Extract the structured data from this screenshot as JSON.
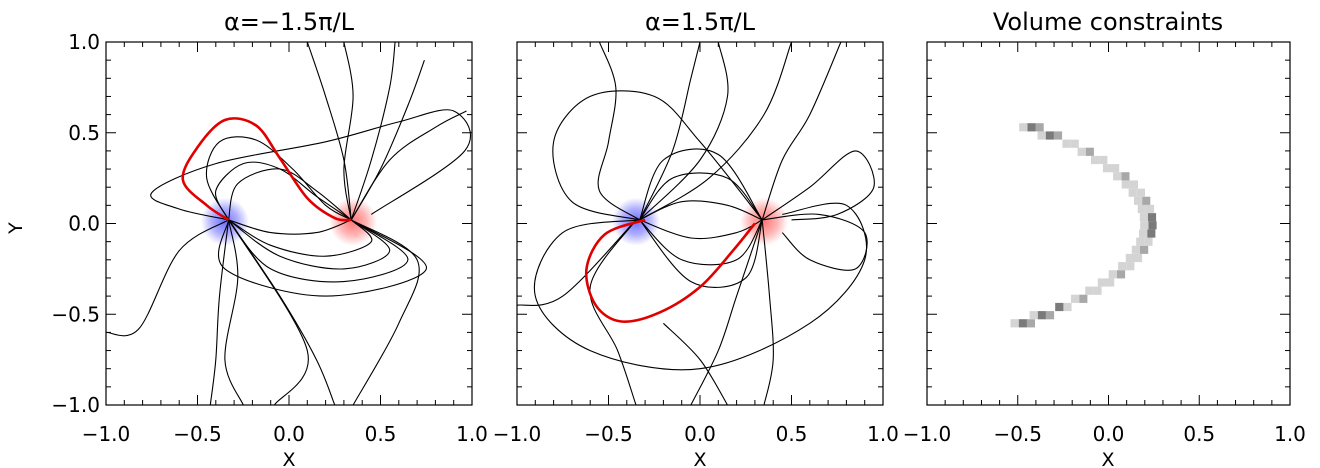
{
  "chart_data": [
    {
      "type": "line",
      "title": "α=−1.5π/L",
      "xlabel": "X",
      "ylabel": "Y",
      "xlim": [
        -1.0,
        1.0
      ],
      "ylim": [
        -1.0,
        1.0
      ],
      "x_ticks": [
        "−1.0",
        "−0.5",
        "0.0",
        "0.5",
        "1.0"
      ],
      "y_ticks": [
        "−1.0",
        "−0.5",
        "0.0",
        "0.5",
        "1.0"
      ],
      "grid": false,
      "sources": [
        {
          "name": "negative-pole",
          "x": -0.35,
          "y": 0.01,
          "color": "#6f6fff"
        },
        {
          "name": "positive-pole",
          "x": 0.35,
          "y": 0.01,
          "color": "#ff7777"
        }
      ],
      "highlight_color": "#e00000",
      "field_lines": [
        {
          "highlight": true,
          "points": [
            [
              -0.33,
              0.02
            ],
            [
              -0.45,
              0.1
            ],
            [
              -0.58,
              0.24
            ],
            [
              -0.5,
              0.42
            ],
            [
              -0.35,
              0.57
            ],
            [
              -0.18,
              0.54
            ],
            [
              -0.05,
              0.36
            ],
            [
              0.1,
              0.14
            ],
            [
              0.25,
              0.03
            ],
            [
              0.34,
              0.02
            ]
          ]
        },
        {
          "highlight": false,
          "points": [
            [
              -0.33,
              0.02
            ],
            [
              -0.28,
              0.22
            ],
            [
              -0.05,
              0.3
            ],
            [
              0.15,
              0.18
            ],
            [
              0.34,
              0.02
            ]
          ]
        },
        {
          "highlight": false,
          "points": [
            [
              -0.33,
              0.02
            ],
            [
              -0.45,
              0.25
            ],
            [
              -0.38,
              0.45
            ],
            [
              -0.18,
              0.46
            ],
            [
              0.02,
              0.3
            ],
            [
              0.2,
              0.1
            ],
            [
              0.34,
              0.02
            ]
          ]
        },
        {
          "highlight": false,
          "points": [
            [
              -0.33,
              0.02
            ],
            [
              -0.4,
              0.18
            ],
            [
              -0.25,
              0.33
            ],
            [
              -0.05,
              0.3
            ],
            [
              0.15,
              0.15
            ],
            [
              0.34,
              0.02
            ]
          ]
        },
        {
          "highlight": false,
          "points": [
            [
              -0.33,
              0.02
            ],
            [
              -0.1,
              -0.05
            ],
            [
              0.15,
              -0.05
            ],
            [
              0.34,
              0.02
            ]
          ]
        },
        {
          "highlight": false,
          "points": [
            [
              -0.33,
              0.02
            ],
            [
              -0.1,
              -0.12
            ],
            [
              0.2,
              -0.18
            ],
            [
              0.45,
              -0.1
            ],
            [
              0.34,
              0.02
            ]
          ]
        },
        {
          "highlight": false,
          "points": [
            [
              -0.33,
              0.02
            ],
            [
              -0.05,
              -0.18
            ],
            [
              0.3,
              -0.25
            ],
            [
              0.55,
              -0.15
            ],
            [
              0.34,
              0.02
            ]
          ]
        },
        {
          "highlight": false,
          "points": [
            [
              -0.33,
              0.02
            ],
            [
              -0.1,
              -0.25
            ],
            [
              0.3,
              -0.32
            ],
            [
              0.65,
              -0.2
            ],
            [
              0.34,
              0.02
            ]
          ]
        },
        {
          "highlight": false,
          "points": [
            [
              -0.33,
              0.02
            ],
            [
              -0.35,
              -0.25
            ],
            [
              0.2,
              -0.4
            ],
            [
              0.75,
              -0.25
            ],
            [
              0.34,
              0.02
            ]
          ]
        },
        {
          "highlight": false,
          "points": [
            [
              -0.33,
              0.02
            ],
            [
              -0.6,
              0.08
            ],
            [
              -0.75,
              0.17
            ],
            [
              -0.4,
              0.33
            ],
            [
              0.2,
              0.45
            ],
            [
              0.6,
              0.56
            ],
            [
              0.9,
              0.62
            ],
            [
              0.96,
              0.4
            ],
            [
              0.45,
              0.05
            ]
          ]
        },
        {
          "highlight": false,
          "points": [
            [
              -0.33,
              0.02
            ],
            [
              -0.6,
              -0.15
            ],
            [
              -0.82,
              -0.58
            ],
            [
              -1.0,
              -0.6
            ]
          ]
        },
        {
          "highlight": false,
          "points": [
            [
              -0.33,
              0.02
            ],
            [
              -0.38,
              -0.4
            ],
            [
              -0.4,
              -0.75
            ],
            [
              -0.43,
              -1.0
            ]
          ]
        },
        {
          "highlight": false,
          "points": [
            [
              -0.33,
              0.02
            ],
            [
              -0.28,
              -0.3
            ],
            [
              -0.35,
              -0.75
            ],
            [
              -0.25,
              -1.0
            ]
          ]
        },
        {
          "highlight": false,
          "points": [
            [
              -0.33,
              0.02
            ],
            [
              -0.05,
              -0.4
            ],
            [
              0.15,
              -0.75
            ],
            [
              0.25,
              -1.0
            ]
          ]
        },
        {
          "highlight": false,
          "points": [
            [
              -0.33,
              0.02
            ],
            [
              0.1,
              -0.7
            ],
            [
              -0.08,
              -1.0
            ]
          ]
        },
        {
          "highlight": false,
          "points": [
            [
              0.1,
              1.0
            ],
            [
              0.2,
              0.7
            ],
            [
              0.3,
              0.35
            ],
            [
              0.34,
              0.02
            ]
          ]
        },
        {
          "highlight": false,
          "points": [
            [
              0.3,
              1.0
            ],
            [
              0.35,
              0.7
            ],
            [
              0.3,
              0.3
            ],
            [
              0.34,
              0.02
            ]
          ]
        },
        {
          "highlight": false,
          "points": [
            [
              0.34,
              0.02
            ],
            [
              0.55,
              0.35
            ],
            [
              0.8,
              0.53
            ],
            [
              0.97,
              0.62
            ]
          ]
        },
        {
          "highlight": false,
          "points": [
            [
              0.34,
              0.02
            ],
            [
              0.5,
              0.3
            ],
            [
              0.65,
              0.65
            ],
            [
              0.74,
              0.9
            ]
          ]
        },
        {
          "highlight": false,
          "points": [
            [
              0.34,
              0.02
            ],
            [
              0.45,
              0.35
            ],
            [
              0.55,
              0.75
            ],
            [
              0.58,
              1.0
            ]
          ]
        },
        {
          "highlight": false,
          "points": [
            [
              0.34,
              0.02
            ],
            [
              0.7,
              -0.2
            ],
            [
              0.6,
              -0.55
            ],
            [
              0.35,
              -1.0
            ]
          ]
        }
      ]
    },
    {
      "type": "line",
      "title": "α=1.5π/L",
      "xlabel": "X",
      "ylabel": "",
      "xlim": [
        -1.0,
        1.0
      ],
      "ylim": [
        -1.0,
        1.0
      ],
      "x_ticks": [
        "−1.0",
        "−0.5",
        "0.0",
        "0.5",
        "1.0"
      ],
      "grid": false,
      "sources": [
        {
          "name": "negative-pole",
          "x": -0.35,
          "y": 0.01,
          "color": "#6f6fff"
        },
        {
          "name": "positive-pole",
          "x": 0.35,
          "y": 0.01,
          "color": "#ff7777"
        }
      ],
      "highlight_color": "#e00000",
      "field_lines": [
        {
          "highlight": true,
          "points": [
            [
              -0.3,
              0.02
            ],
            [
              -0.52,
              -0.06
            ],
            [
              -0.62,
              -0.25
            ],
            [
              -0.57,
              -0.45
            ],
            [
              -0.43,
              -0.54
            ],
            [
              -0.22,
              -0.49
            ],
            [
              0.0,
              -0.35
            ],
            [
              0.18,
              -0.15
            ],
            [
              0.3,
              0.0
            ]
          ]
        },
        {
          "highlight": false,
          "points": [
            [
              -0.33,
              0.02
            ],
            [
              -0.1,
              0.12
            ],
            [
              0.15,
              0.1
            ],
            [
              0.34,
              0.02
            ]
          ]
        },
        {
          "highlight": false,
          "points": [
            [
              -0.33,
              0.02
            ],
            [
              -0.15,
              0.25
            ],
            [
              0.15,
              0.25
            ],
            [
              0.34,
              0.02
            ]
          ]
        },
        {
          "highlight": false,
          "points": [
            [
              -0.33,
              0.02
            ],
            [
              -0.2,
              0.35
            ],
            [
              0.1,
              0.38
            ],
            [
              0.34,
              0.02
            ]
          ]
        },
        {
          "highlight": false,
          "points": [
            [
              -0.33,
              0.02
            ],
            [
              -0.05,
              -0.08
            ],
            [
              0.2,
              -0.05
            ],
            [
              0.34,
              0.02
            ]
          ]
        },
        {
          "highlight": false,
          "points": [
            [
              -0.33,
              0.02
            ],
            [
              -0.1,
              -0.2
            ],
            [
              0.2,
              -0.2
            ],
            [
              0.34,
              0.02
            ]
          ]
        },
        {
          "highlight": false,
          "points": [
            [
              -0.33,
              0.02
            ],
            [
              -0.05,
              -0.32
            ],
            [
              0.25,
              -0.3
            ],
            [
              0.34,
              0.02
            ]
          ]
        },
        {
          "highlight": false,
          "points": [
            [
              -0.33,
              0.02
            ],
            [
              -0.7,
              0.12
            ],
            [
              -0.8,
              0.45
            ],
            [
              -0.6,
              0.7
            ],
            [
              -0.25,
              0.7
            ],
            [
              0.0,
              0.45
            ],
            [
              0.34,
              0.02
            ]
          ]
        },
        {
          "highlight": false,
          "points": [
            [
              -0.33,
              0.02
            ],
            [
              -0.55,
              0.18
            ],
            [
              -0.5,
              0.45
            ],
            [
              -0.46,
              0.75
            ],
            [
              -0.55,
              1.0
            ]
          ]
        },
        {
          "highlight": false,
          "points": [
            [
              -0.33,
              0.02
            ],
            [
              -0.15,
              0.4
            ],
            [
              -0.05,
              0.8
            ],
            [
              0.0,
              1.0
            ]
          ]
        },
        {
          "highlight": false,
          "points": [
            [
              -0.33,
              0.02
            ],
            [
              0.0,
              0.35
            ],
            [
              0.15,
              0.7
            ],
            [
              0.1,
              1.0
            ]
          ]
        },
        {
          "highlight": false,
          "points": [
            [
              -0.33,
              0.02
            ],
            [
              0.05,
              0.25
            ],
            [
              0.35,
              0.6
            ],
            [
              0.5,
              1.0
            ]
          ]
        },
        {
          "highlight": false,
          "points": [
            [
              -0.33,
              0.02
            ],
            [
              -0.75,
              -0.05
            ],
            [
              -0.9,
              -0.4
            ],
            [
              -0.6,
              -0.7
            ],
            [
              0.0,
              -0.8
            ],
            [
              0.6,
              -0.55
            ],
            [
              0.9,
              -0.2
            ],
            [
              0.8,
              0.1
            ],
            [
              0.45,
              0.05
            ]
          ]
        },
        {
          "highlight": false,
          "points": [
            [
              -0.35,
              0.02
            ],
            [
              -0.6,
              -0.35
            ],
            [
              -0.45,
              -0.7
            ],
            [
              -0.35,
              -1.0
            ]
          ]
        },
        {
          "highlight": false,
          "points": [
            [
              -0.35,
              0.02
            ],
            [
              -0.75,
              -0.4
            ],
            [
              -1.0,
              -0.45
            ]
          ]
        },
        {
          "highlight": false,
          "points": [
            [
              -0.2,
              -0.55
            ],
            [
              0.0,
              -0.75
            ],
            [
              0.15,
              -1.0
            ]
          ]
        },
        {
          "highlight": false,
          "points": [
            [
              0.34,
              0.02
            ],
            [
              0.45,
              0.35
            ],
            [
              0.6,
              0.6
            ],
            [
              0.77,
              1.0
            ]
          ]
        },
        {
          "highlight": false,
          "points": [
            [
              0.34,
              0.02
            ],
            [
              0.6,
              0.2
            ],
            [
              0.85,
              0.4
            ],
            [
              0.95,
              0.2
            ],
            [
              0.75,
              0.05
            ],
            [
              0.5,
              0.02
            ]
          ]
        },
        {
          "highlight": false,
          "points": [
            [
              0.34,
              0.02
            ],
            [
              0.65,
              0.05
            ],
            [
              0.9,
              -0.05
            ],
            [
              0.85,
              -0.25
            ],
            [
              0.6,
              -0.2
            ],
            [
              0.45,
              -0.05
            ]
          ]
        },
        {
          "highlight": false,
          "points": [
            [
              0.34,
              0.02
            ],
            [
              0.2,
              -0.4
            ],
            [
              0.1,
              -0.7
            ],
            [
              -0.05,
              -1.0
            ]
          ]
        },
        {
          "highlight": false,
          "points": [
            [
              0.34,
              0.02
            ],
            [
              0.38,
              -0.4
            ],
            [
              0.4,
              -0.75
            ],
            [
              0.35,
              -1.0
            ]
          ]
        }
      ]
    },
    {
      "type": "heatmap",
      "title": "Volume constraints",
      "xlabel": "X",
      "ylabel": "",
      "xlim": [
        -1.0,
        1.0
      ],
      "ylim": [
        -1.0,
        1.0
      ],
      "x_ticks": [
        "−1.0",
        "−0.5",
        "0.0",
        "0.5",
        "1.0"
      ],
      "grid": false,
      "cell_size": 0.045,
      "curve": {
        "x_vertex": 0.22,
        "x_end": -0.45,
        "y_range": [
          -0.55,
          0.55
        ]
      },
      "colormap": [
        "#d4d4d4",
        "#a8a8a8",
        "#7a7a7a"
      ]
    }
  ]
}
